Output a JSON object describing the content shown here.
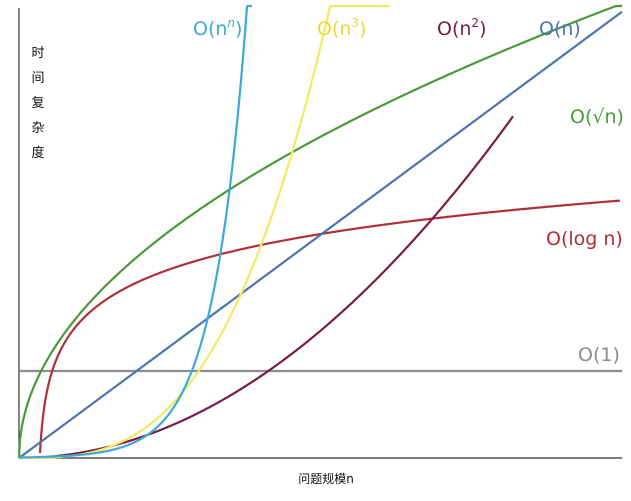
{
  "chart_data": {
    "type": "line",
    "xlabel": "问题规模n",
    "ylabel": "时间复杂度",
    "grid": false,
    "legend": "inline labels at curve ends",
    "series": [
      {
        "name": "O(1)",
        "kind": "constant",
        "color": "#8c8c8c"
      },
      {
        "name": "O(log n)",
        "kind": "log",
        "color": "#b03038"
      },
      {
        "name": "O(√n)",
        "kind": "sqrt",
        "color": "#4a9a3a"
      },
      {
        "name": "O(n)",
        "kind": "linear",
        "color": "#4c74ad"
      },
      {
        "name": "O(n2)",
        "kind": "square",
        "color": "#7a1c4a"
      },
      {
        "name": "O(n3)",
        "kind": "cube",
        "color": "#f2ea62"
      },
      {
        "name": "O(nn)",
        "kind": "exponent",
        "color": "#3fa9d6"
      }
    ],
    "labels": {
      "constant": {
        "base": "O(1)"
      },
      "log": {
        "base": "O(log n)"
      },
      "sqrt": {
        "base": "O(√n)"
      },
      "linear": {
        "base": "O(n)"
      },
      "square": {
        "pre": "O(n",
        "sup": "2",
        "post": ")"
      },
      "cube": {
        "pre": "O(n",
        "sup": "3",
        "post": ")"
      },
      "exponent": {
        "pre": "O(n",
        "sup": "n",
        "post": ")"
      }
    }
  }
}
